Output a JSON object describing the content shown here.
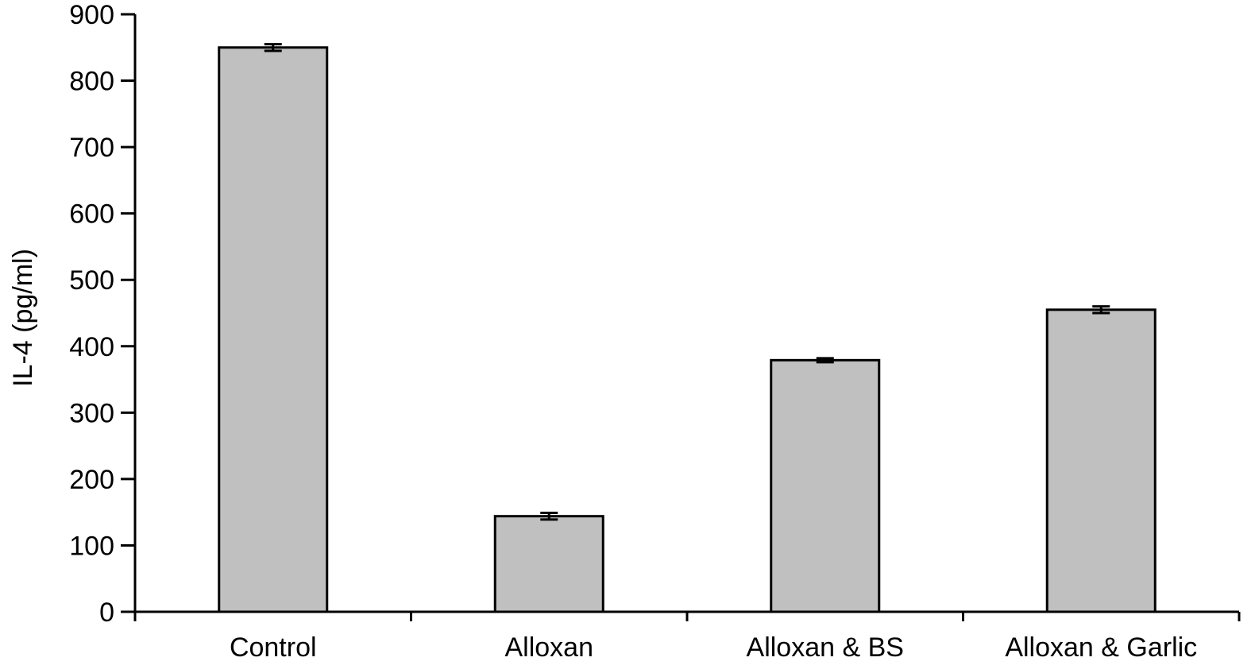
{
  "chart_data": {
    "type": "bar",
    "title": "",
    "xlabel": "",
    "ylabel": "IL-4 (pg/ml)",
    "categories": [
      "Control",
      "Alloxan",
      "Alloxan & BS",
      "Alloxan & Garlic"
    ],
    "values": [
      850,
      144,
      379,
      455
    ],
    "error": [
      5,
      5,
      3,
      5
    ],
    "ylim": [
      0,
      900
    ],
    "yticks": [
      "0",
      "100",
      "200",
      "300",
      "400",
      "500",
      "600",
      "700",
      "800",
      "900"
    ],
    "grid": false,
    "legend": "none"
  },
  "colors": {
    "bar_fill": "#c0c0c0",
    "bar_stroke": "#000000",
    "axis": "#000000",
    "background": "#ffffff"
  }
}
